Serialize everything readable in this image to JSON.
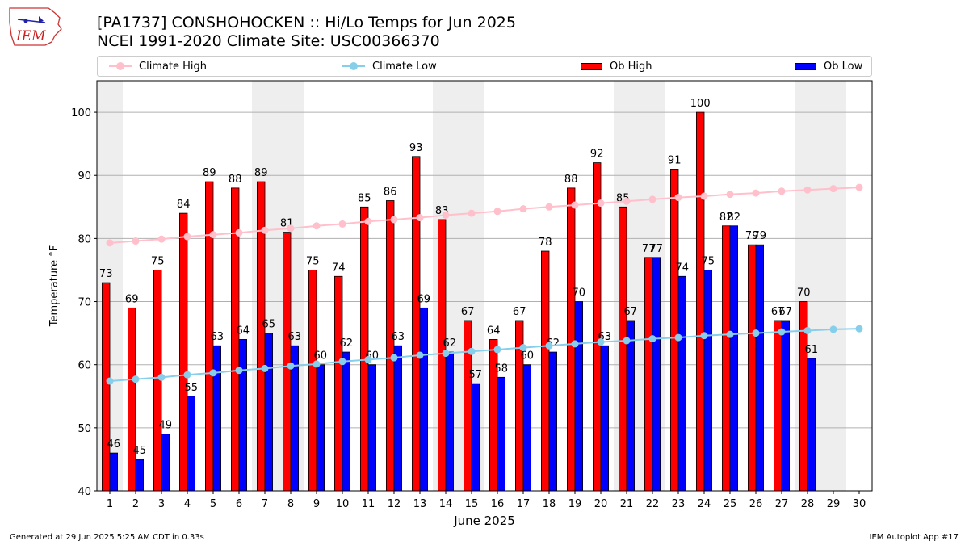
{
  "header": {
    "title": "[PA1737] CONSHOHOCKEN :: Hi/Lo Temps for Jun 2025",
    "subtitle": "NCEI 1991-2020 Climate Site: USC00366370",
    "logo_text": "IEM"
  },
  "footer": {
    "generated": "Generated at 29 Jun 2025 5:25 AM CDT in 0.33s",
    "app": "IEM Autoplot App #17"
  },
  "colors": {
    "ob_high": "#ff0000",
    "ob_low": "#0000ff",
    "climate_high": "#ffc0cb",
    "climate_low": "#87ceeb",
    "weekend_shade": "#eeeeee",
    "grid": "#b0b0b0"
  },
  "chart_data": {
    "type": "bar",
    "title": "[PA1737] CONSHOHOCKEN :: Hi/Lo Temps for Jun 2025",
    "xlabel": "June 2025",
    "ylabel": "Temperature °F",
    "ylim": [
      40,
      105
    ],
    "yticks": [
      40,
      50,
      60,
      70,
      80,
      90,
      100
    ],
    "grid": "horizontal",
    "legend_position": "top",
    "categories": [
      "1",
      "2",
      "3",
      "4",
      "5",
      "6",
      "7",
      "8",
      "9",
      "10",
      "11",
      "12",
      "13",
      "14",
      "15",
      "16",
      "17",
      "18",
      "19",
      "20",
      "21",
      "22",
      "23",
      "24",
      "25",
      "26",
      "27",
      "28",
      "29",
      "30"
    ],
    "shaded_days": [
      1,
      7,
      8,
      14,
      15,
      21,
      22,
      28,
      29
    ],
    "series": [
      {
        "name": "Ob High",
        "kind": "bar",
        "color": "#ff0000",
        "values": [
          73,
          69,
          75,
          84,
          89,
          88,
          89,
          81,
          75,
          74,
          85,
          86,
          93,
          83,
          67,
          64,
          67,
          78,
          88,
          92,
          85,
          77,
          91,
          100,
          82,
          79,
          67,
          70,
          null,
          null
        ]
      },
      {
        "name": "Ob Low",
        "kind": "bar",
        "color": "#0000ff",
        "values": [
          46,
          45,
          49,
          55,
          63,
          64,
          65,
          63,
          60,
          62,
          60,
          63,
          69,
          62,
          57,
          58,
          60,
          62,
          70,
          63,
          67,
          77,
          74,
          75,
          82,
          79,
          67,
          61,
          null,
          null
        ]
      },
      {
        "name": "Climate High",
        "kind": "line",
        "color": "#ffc0cb",
        "values": [
          79.3,
          79.6,
          79.9,
          80.3,
          80.6,
          80.9,
          81.3,
          81.6,
          82.0,
          82.3,
          82.7,
          83.0,
          83.3,
          83.7,
          84.0,
          84.3,
          84.7,
          85.0,
          85.3,
          85.6,
          85.9,
          86.2,
          86.5,
          86.7,
          87.0,
          87.2,
          87.5,
          87.7,
          87.9,
          88.1
        ]
      },
      {
        "name": "Climate Low",
        "kind": "line",
        "color": "#87ceeb",
        "values": [
          57.4,
          57.7,
          58.0,
          58.4,
          58.7,
          59.1,
          59.4,
          59.8,
          60.1,
          60.5,
          60.8,
          61.1,
          61.5,
          61.8,
          62.1,
          62.4,
          62.7,
          63.0,
          63.3,
          63.6,
          63.8,
          64.1,
          64.3,
          64.6,
          64.8,
          65.0,
          65.2,
          65.4,
          65.6,
          65.7
        ]
      }
    ]
  }
}
